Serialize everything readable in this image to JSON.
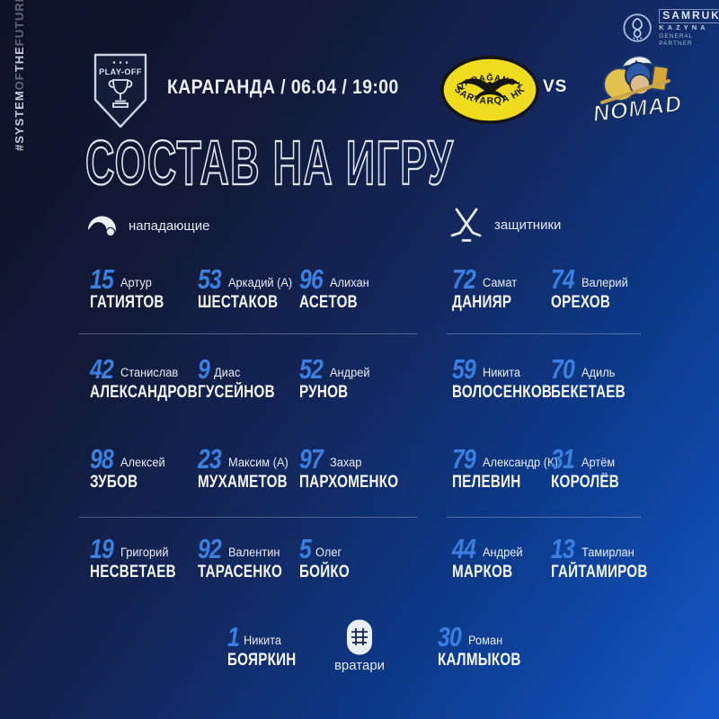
{
  "side_text": {
    "full": "#SYSTEMOFTHEFUTURE",
    "segments": [
      {
        "text": "#SYSTEM",
        "dim": false
      },
      {
        "text": "OF",
        "dim": true
      },
      {
        "text": "THE",
        "dim": false
      },
      {
        "text": "FUTURE",
        "dim": true
      }
    ]
  },
  "header": {
    "playoff_label": "PLAY-OFF",
    "match_info": "КАРАГАНДА / 06.04 / 19:00",
    "vs_label": "VS",
    "home_team": {
      "top": "QARAĞANDY",
      "bottom": "SARYARQA HK"
    },
    "away_team": {
      "name": "NOMAD"
    },
    "partner": {
      "line1": "SAMRUK",
      "line2": "KAZYNA",
      "line3": "GENERAL PARTNER"
    }
  },
  "title": "СОСТАВ НА ИГРУ",
  "sections": {
    "forwards": {
      "label": "нападающие",
      "icon": "helmet-icon",
      "players": [
        {
          "num": "15",
          "first": "Артур",
          "last": "ГАТИЯТОВ"
        },
        {
          "num": "53",
          "first": "Аркадий (А)",
          "last": "ШЕСТАКОВ"
        },
        {
          "num": "96",
          "first": "Алихан",
          "last": "АСЕТОВ"
        },
        {
          "num": "42",
          "first": "Станислав",
          "last": "АЛЕКСАНДРОВ"
        },
        {
          "num": "9",
          "first": "Диас",
          "last": "ГУСЕЙНОВ"
        },
        {
          "num": "52",
          "first": "Андрей",
          "last": "РУНОВ"
        },
        {
          "num": "98",
          "first": "Алексей",
          "last": "ЗУБОВ"
        },
        {
          "num": "23",
          "first": "Максим (А)",
          "last": "МУХАМЕТОВ"
        },
        {
          "num": "97",
          "first": "Захар",
          "last": "ПАРХОМЕНКО"
        },
        {
          "num": "19",
          "first": "Григорий",
          "last": "НЕСВЕТАЕВ"
        },
        {
          "num": "92",
          "first": "Валентин",
          "last": "ТАРАСЕНКО"
        },
        {
          "num": "5",
          "first": "Олег",
          "last": "БОЙКО"
        }
      ]
    },
    "defenders": {
      "label": "защитники",
      "icon": "crossed-sticks-icon",
      "players": [
        {
          "num": "72",
          "first": "Самат",
          "last": "ДАНИЯР"
        },
        {
          "num": "74",
          "first": "Валерий",
          "last": "ОРЕХОВ"
        },
        {
          "num": "59",
          "first": "Никита",
          "last": "ВОЛОСЕНКОВ"
        },
        {
          "num": "70",
          "first": "Адиль",
          "last": "БЕКЕТАЕВ"
        },
        {
          "num": "79",
          "first": "Александр (К)",
          "last": "ПЕЛЕВИН"
        },
        {
          "num": "31",
          "first": "Артём",
          "last": "КОРОЛЁВ"
        },
        {
          "num": "44",
          "first": "Андрей",
          "last": "МАРКОВ"
        },
        {
          "num": "13",
          "first": "Тамирлан",
          "last": "ГАЙТАМИРОВ"
        }
      ]
    },
    "goalies": {
      "label": "вратари",
      "icon": "goalie-mask-icon",
      "players": [
        {
          "num": "1",
          "first": "Никита",
          "last": "БОЯРКИН"
        },
        {
          "num": "30",
          "first": "Роман",
          "last": "КАЛМЫКОВ"
        }
      ]
    }
  },
  "colors": {
    "number_blue": "#3b80e0",
    "background_dark": "#0d1226",
    "background_bright": "#1557c8",
    "home_logo_yellow": "#f0dc1e",
    "text_white": "#f4f7fb"
  }
}
